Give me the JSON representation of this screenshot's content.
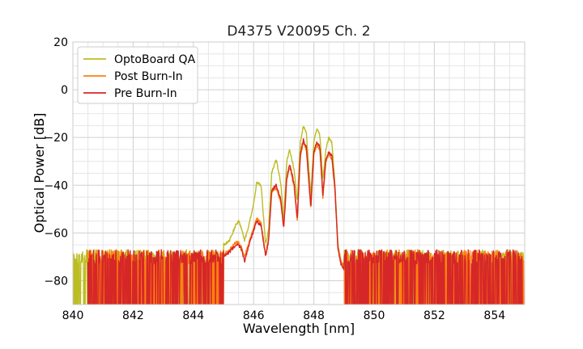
{
  "chart_data": {
    "type": "line",
    "title": "D4375 V20095 Ch. 2",
    "xlabel": "Wavelength [nm]",
    "ylabel": "Optical Power [dB]",
    "xlim": [
      840,
      855
    ],
    "ylim": [
      -90,
      20
    ],
    "xticks": [
      840,
      842,
      844,
      846,
      848,
      850,
      852,
      854
    ],
    "xtick_labels": [
      "840",
      "842",
      "844",
      "846",
      "848",
      "850",
      "852",
      "854"
    ],
    "yticks": [
      20,
      0,
      -20,
      -40,
      -60,
      -80
    ],
    "ytick_labels": [
      "20",
      "0",
      "−20",
      "−40",
      "−60",
      "−80"
    ],
    "grid": true,
    "legend_position": "top-left",
    "series": [
      {
        "name": "OptoBoard QA",
        "color": "#bcbd22",
        "noise_level": -79,
        "x": [
          845.0,
          845.2,
          845.4,
          845.5,
          845.6,
          845.7,
          845.8,
          846.0,
          846.1,
          846.25,
          846.4,
          846.5,
          846.6,
          846.75,
          846.9,
          847.0,
          847.1,
          847.2,
          847.35,
          847.45,
          847.55,
          847.65,
          847.75,
          847.9,
          848.0,
          848.1,
          848.2,
          848.3,
          848.4,
          848.5,
          848.6,
          848.7,
          848.8,
          848.9,
          849.0
        ],
        "y": [
          -65,
          -63,
          -57,
          -55,
          -58,
          -63,
          -59,
          -48,
          -39,
          -40,
          -65,
          -58,
          -35,
          -29,
          -39,
          -55,
          -30,
          -25,
          -34,
          -47,
          -22,
          -15,
          -18,
          -45,
          -22,
          -16,
          -19,
          -38,
          -25,
          -20,
          -22,
          -40,
          -65,
          -72,
          -74
        ]
      },
      {
        "name": "Post Burn-In",
        "color": "#ff7f0e",
        "noise_level": -79,
        "x": [
          845.0,
          845.2,
          845.4,
          845.5,
          845.6,
          845.7,
          845.8,
          846.0,
          846.1,
          846.25,
          846.4,
          846.5,
          846.6,
          846.75,
          846.9,
          847.0,
          847.1,
          847.2,
          847.35,
          847.45,
          847.55,
          847.65,
          847.75,
          847.9,
          848.0,
          848.1,
          848.2,
          848.3,
          848.4,
          848.5,
          848.6,
          848.7,
          848.8,
          848.9,
          849.0
        ],
        "y": [
          -69,
          -67,
          -64,
          -64,
          -66,
          -70,
          -66,
          -58,
          -54,
          -56,
          -69,
          -62,
          -43,
          -41,
          -47,
          -58,
          -38,
          -32,
          -41,
          -55,
          -28,
          -22,
          -25,
          -50,
          -27,
          -23,
          -25,
          -45,
          -30,
          -27,
          -29,
          -42,
          -66,
          -72,
          -74
        ]
      },
      {
        "name": "Pre Burn-In",
        "color": "#d62728",
        "noise_level": -79,
        "x": [
          845.0,
          845.2,
          845.4,
          845.5,
          845.6,
          845.7,
          845.8,
          846.0,
          846.1,
          846.25,
          846.4,
          846.5,
          846.6,
          846.75,
          846.9,
          847.0,
          847.1,
          847.2,
          847.35,
          847.45,
          847.55,
          847.65,
          847.75,
          847.9,
          848.0,
          848.1,
          848.2,
          848.3,
          848.4,
          848.5,
          848.6,
          848.7,
          848.8,
          848.9,
          849.0
        ],
        "y": [
          -70,
          -68,
          -65,
          -65,
          -67,
          -72,
          -67,
          -59,
          -55,
          -57,
          -70,
          -63,
          -42,
          -40,
          -46,
          -58,
          -37,
          -31,
          -40,
          -54,
          -27,
          -21,
          -24,
          -49,
          -26,
          -22,
          -24,
          -44,
          -29,
          -26,
          -28,
          -41,
          -67,
          -73,
          -75
        ]
      }
    ]
  }
}
